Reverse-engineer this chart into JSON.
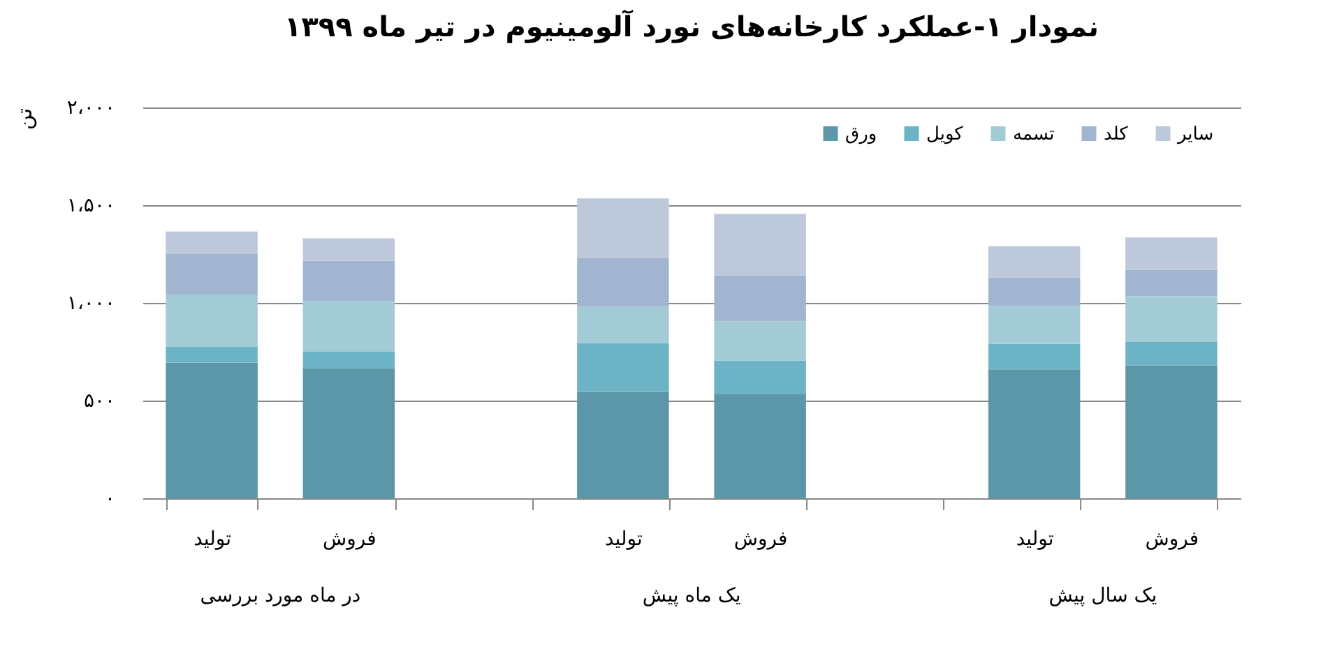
{
  "chart_data": {
    "type": "bar",
    "stacked": true,
    "title": "نمودار ۱-عملکرد کارخانه‌های نورد آلومینیوم در تیر ماه ۱۳۹۹",
    "ylabel": "تن",
    "categories": [
      "تولید",
      "فروش",
      null,
      "تولید",
      "فروش",
      null,
      "تولید",
      "فروش"
    ],
    "series": [
      {
        "name": "ورق",
        "color": "#5b97a8",
        "values": [
          695,
          665,
          null,
          545,
          535,
          null,
          660,
          680
        ]
      },
      {
        "name": "کویل",
        "color": "#6db3c6",
        "values": [
          80,
          85,
          null,
          250,
          170,
          null,
          130,
          120
        ]
      },
      {
        "name": "تسمه",
        "color": "#a3cbd5",
        "values": [
          265,
          260,
          null,
          185,
          200,
          null,
          195,
          235
        ]
      },
      {
        "name": "کلد",
        "color": "#a1b5d1",
        "values": [
          210,
          205,
          null,
          250,
          235,
          null,
          145,
          135
        ]
      },
      {
        "name": "سایر",
        "color": "#bdc9db",
        "values": [
          115,
          115,
          null,
          305,
          315,
          null,
          160,
          165
        ]
      }
    ],
    "ylim": [
      0,
      2000
    ],
    "yticks": [
      {
        "value": 0,
        "label": "۰"
      },
      {
        "value": 500,
        "label": "۵۰۰"
      },
      {
        "value": 1000,
        "label": "۱،۰۰۰"
      },
      {
        "value": 1500,
        "label": "۱،۵۰۰"
      },
      {
        "value": 2000,
        "label": "۲،۰۰۰"
      }
    ],
    "grid": "y",
    "legend": "top right",
    "annotations": [
      "در ماه مورد بررسی",
      "یک ماه پیش",
      "یک سال پیش"
    ]
  }
}
